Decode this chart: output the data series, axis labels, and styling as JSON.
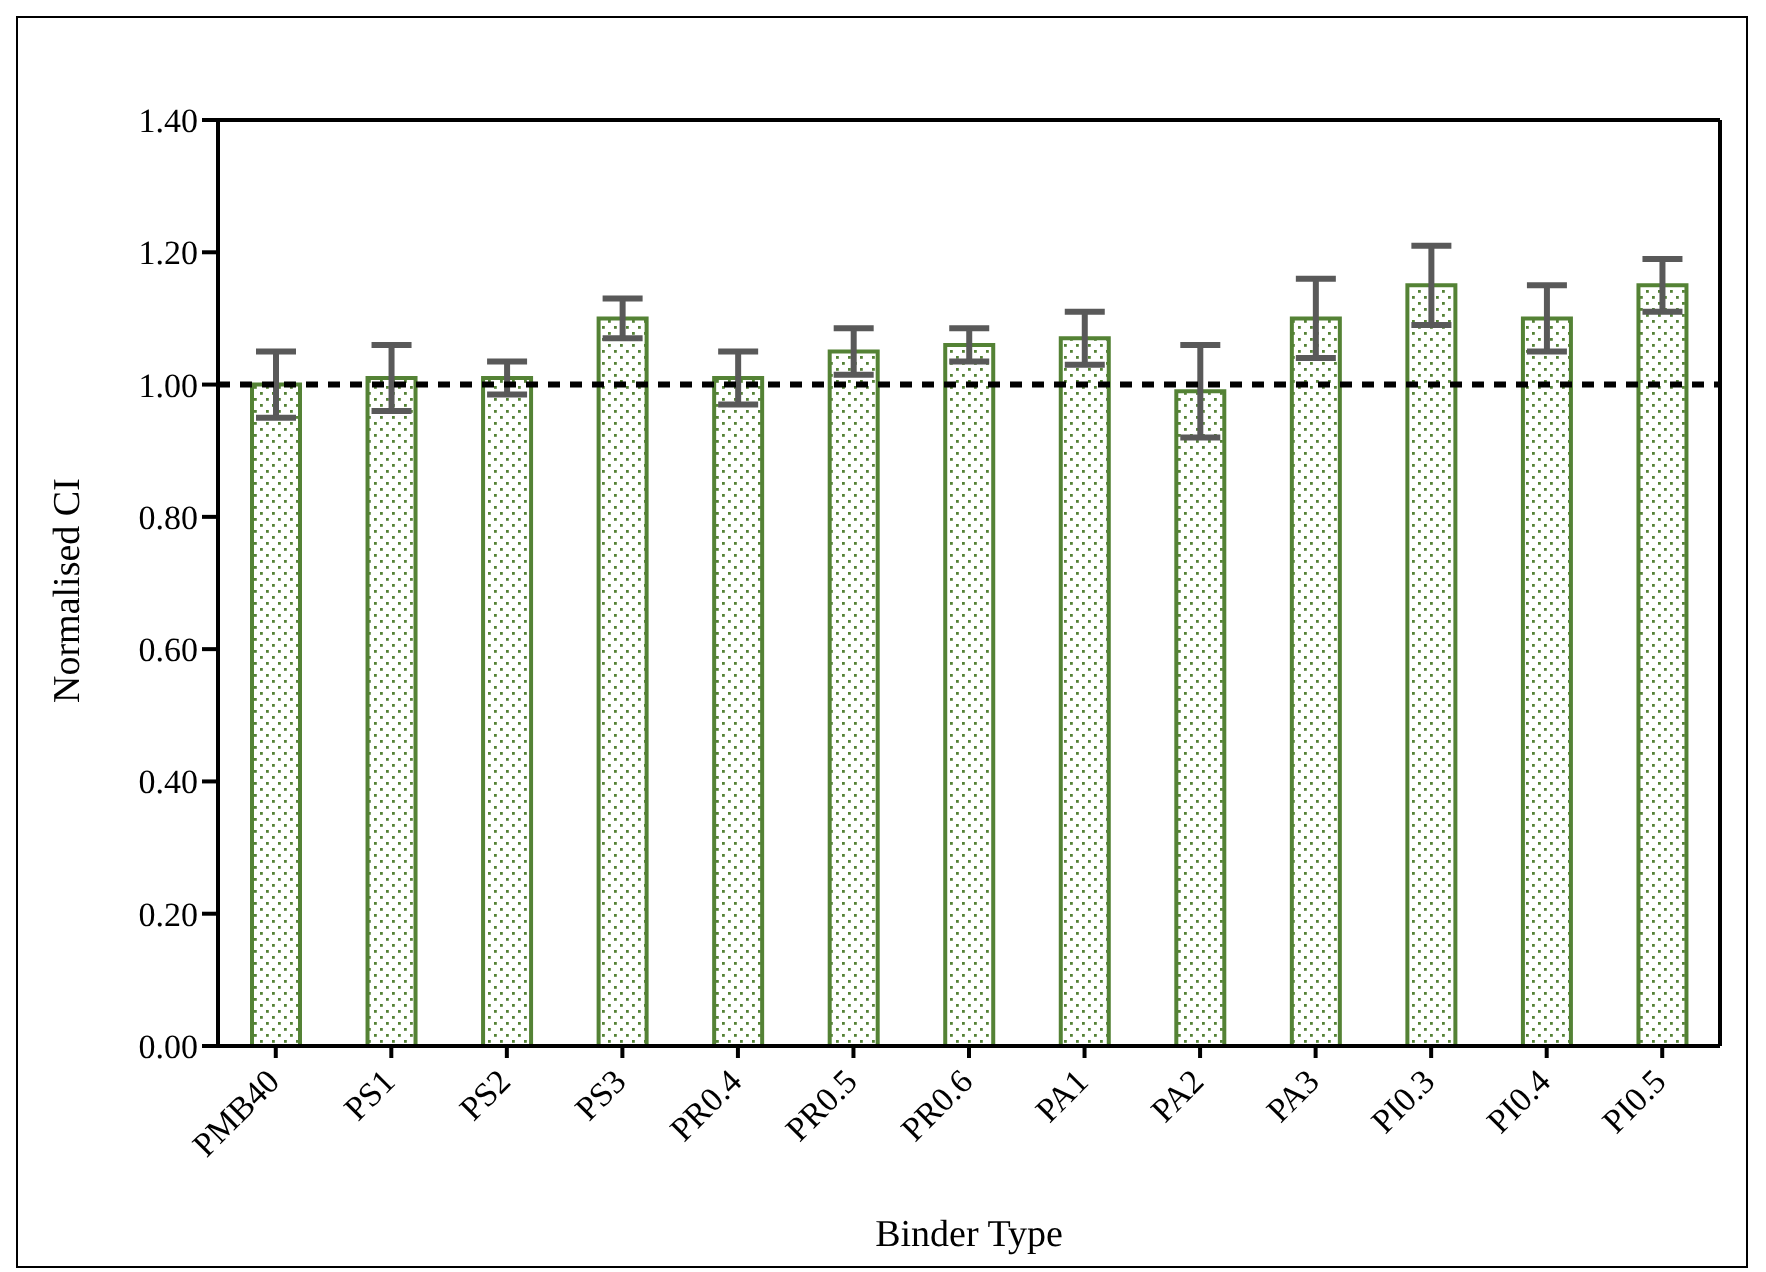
{
  "chart_data": {
    "type": "bar",
    "xlabel": "Binder Type",
    "ylabel": "Normalised CI",
    "categories": [
      "PMB40",
      "PS1",
      "PS2",
      "PS3",
      "PR0.4",
      "PR0.5",
      "PR0.6",
      "PA1",
      "PA2",
      "PA3",
      "PI0.3",
      "PI0.4",
      "PI0.5"
    ],
    "values": [
      1.0,
      1.01,
      1.01,
      1.1,
      1.01,
      1.05,
      1.06,
      1.07,
      0.99,
      1.1,
      1.15,
      1.1,
      1.15
    ],
    "errors": [
      0.05,
      0.05,
      0.025,
      0.03,
      0.04,
      0.035,
      0.025,
      0.04,
      0.07,
      0.06,
      0.06,
      0.05,
      0.04
    ],
    "color": "#548235",
    "ylim": [
      0,
      1.4
    ],
    "yticks": [
      {
        "value": 0,
        "label": "0.00"
      },
      {
        "value": 0.2,
        "label": "0.20"
      },
      {
        "value": 0.4,
        "label": "0.40"
      },
      {
        "value": 0.6,
        "label": "0.60"
      },
      {
        "value": 0.8,
        "label": "0.80"
      },
      {
        "value": 1.0,
        "label": "1.00"
      },
      {
        "value": 1.2,
        "label": "1.20"
      },
      {
        "value": 1.4,
        "label": "1.40"
      }
    ],
    "ref_lines": [
      {
        "axis": "y",
        "value": 1.0,
        "color": "#000000",
        "line_style": "dashed"
      }
    ]
  }
}
